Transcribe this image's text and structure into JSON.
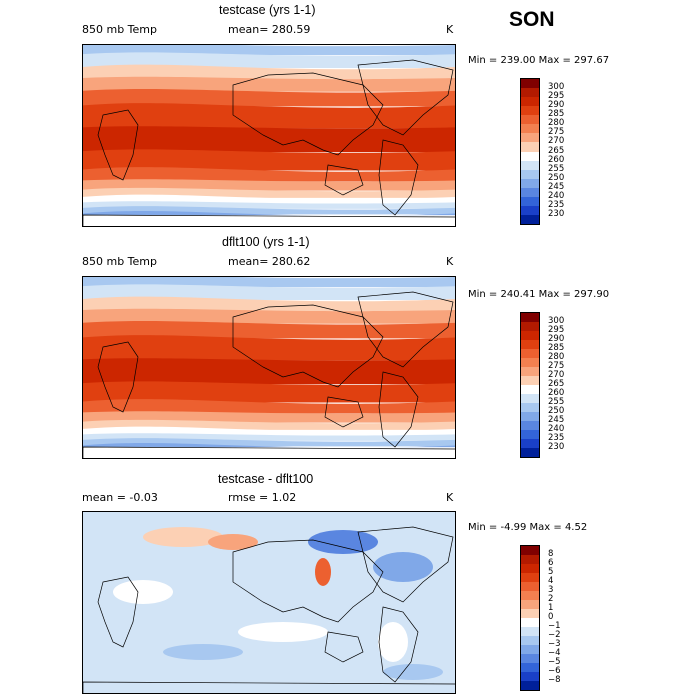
{
  "season": "SON",
  "panels": [
    {
      "title": "testcase (yrs 1-1)",
      "field": "850 mb Temp",
      "stat1": "mean= 280.59",
      "stat2": "",
      "units": "K",
      "minmax": "Min = 239.00 Max = 297.67",
      "colorbar": {
        "labels": [
          "300",
          "295",
          "290",
          "285",
          "280",
          "275",
          "270",
          "265",
          "260",
          "255",
          "250",
          "245",
          "240",
          "235",
          "230"
        ],
        "colors": [
          "#800000",
          "#b31a00",
          "#cc2600",
          "#e04010",
          "#ec6030",
          "#f38050",
          "#f8a47c",
          "#fcd0b4",
          "#ffffff",
          "#d2e4f6",
          "#a8c8f0",
          "#80a8e8",
          "#5a86e0",
          "#3364d8",
          "#1a40c8",
          "#00209a"
        ]
      }
    },
    {
      "title": "dflt100 (yrs 1-1)",
      "field": "850 mb Temp",
      "stat1": "mean= 280.62",
      "stat2": "",
      "units": "K",
      "minmax": "Min = 240.41 Max = 297.90",
      "colorbar": {
        "labels": [
          "300",
          "295",
          "290",
          "285",
          "280",
          "275",
          "270",
          "265",
          "260",
          "255",
          "250",
          "245",
          "240",
          "235",
          "230"
        ],
        "colors": [
          "#800000",
          "#b31a00",
          "#cc2600",
          "#e04010",
          "#ec6030",
          "#f38050",
          "#f8a47c",
          "#fcd0b4",
          "#ffffff",
          "#d2e4f6",
          "#a8c8f0",
          "#80a8e8",
          "#5a86e0",
          "#3364d8",
          "#1a40c8",
          "#00209a"
        ]
      }
    },
    {
      "title": "testcase - dflt100",
      "field": "mean =  -0.03",
      "stat1": "rmse =   1.02",
      "stat2": "",
      "units": "K",
      "minmax": "Min =  -4.99 Max =   4.52",
      "colorbar": {
        "labels": [
          "8",
          "6",
          "5",
          "4",
          "3",
          "2",
          "1",
          "0",
          "−1",
          "−2",
          "−3",
          "−4",
          "−5",
          "−6",
          "−8"
        ],
        "colors": [
          "#800000",
          "#b31a00",
          "#cc2600",
          "#e04010",
          "#ec6030",
          "#f38050",
          "#f8a47c",
          "#fcd0b4",
          "#ffffff",
          "#d2e4f6",
          "#a8c8f0",
          "#80a8e8",
          "#5a86e0",
          "#3364d8",
          "#1a40c8",
          "#00209a"
        ]
      }
    }
  ]
}
